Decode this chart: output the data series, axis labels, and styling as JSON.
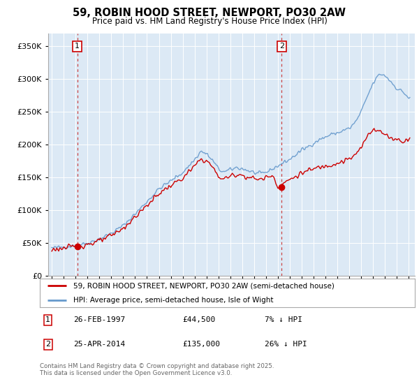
{
  "title": "59, ROBIN HOOD STREET, NEWPORT, PO30 2AW",
  "subtitle": "Price paid vs. HM Land Registry's House Price Index (HPI)",
  "plot_bg_color": "#dce9f5",
  "ylim": [
    0,
    370000
  ],
  "xlim_start": 1994.7,
  "xlim_end": 2025.5,
  "yticks": [
    0,
    50000,
    100000,
    150000,
    200000,
    250000,
    300000,
    350000
  ],
  "xticks": [
    1995,
    1996,
    1997,
    1998,
    1999,
    2000,
    2001,
    2002,
    2003,
    2004,
    2005,
    2006,
    2007,
    2008,
    2009,
    2010,
    2011,
    2012,
    2013,
    2014,
    2015,
    2016,
    2017,
    2018,
    2019,
    2020,
    2021,
    2022,
    2023,
    2024,
    2025
  ],
  "purchase1_x": 1997.15,
  "purchase1_y": 44500,
  "purchase2_x": 2014.32,
  "purchase2_y": 135000,
  "legend_line1": "59, ROBIN HOOD STREET, NEWPORT, PO30 2AW (semi-detached house)",
  "legend_line2": "HPI: Average price, semi-detached house, Isle of Wight",
  "footer": "Contains HM Land Registry data © Crown copyright and database right 2025.\nThis data is licensed under the Open Government Licence v3.0.",
  "line_color_red": "#cc0000",
  "line_color_blue": "#6699cc",
  "grid_color": "#ffffff"
}
